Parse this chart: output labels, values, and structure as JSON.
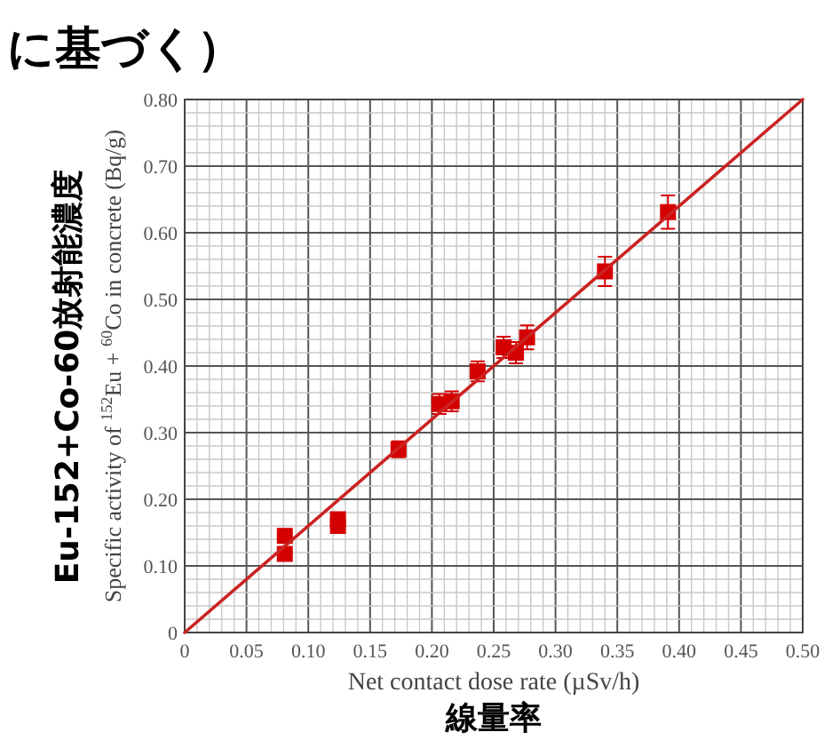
{
  "chart_data": {
    "type": "scatter",
    "title": "に基づく）",
    "xlabel": "Net contact dose rate (µSv/h)",
    "ylabel": "Specific activity of $^{152}$Eu + $^{60}$Co in concrete (Bq/g)",
    "annotations": [
      "Eu-152+Co-60放射能濃度",
      "線量率"
    ],
    "xlim": [
      0,
      0.5
    ],
    "ylim": [
      0,
      0.8
    ],
    "xticks": [
      0,
      {
        "value": 0.05,
        "label": "0.05"
      },
      {
        "value": 0.1,
        "label": "0.10"
      },
      {
        "value": 0.15,
        "label": "0.15"
      },
      {
        "value": 0.2,
        "label": "0.20"
      },
      {
        "value": 0.25,
        "label": "0.25"
      },
      {
        "value": 0.3,
        "label": "0.30"
      },
      {
        "value": 0.35,
        "label": "0.35"
      },
      {
        "value": 0.4,
        "label": "0.40"
      },
      {
        "value": 0.45,
        "label": "0.45"
      },
      {
        "value": 0.5,
        "label": "0.50"
      }
    ],
    "yticks": [
      0,
      {
        "value": 0.1,
        "label": "0.10"
      },
      {
        "value": 0.2,
        "label": "0.20"
      },
      {
        "value": 0.3,
        "label": "0.30"
      },
      {
        "value": 0.4,
        "label": "0.40"
      },
      {
        "value": 0.5,
        "label": "0.50"
      },
      {
        "value": 0.6,
        "label": "0.60"
      },
      {
        "value": 0.7,
        "label": "0.70"
      },
      {
        "value": 0.8,
        "label": "0.80"
      }
    ],
    "grid": true,
    "series": [
      {
        "type": "scatter",
        "marker": "square",
        "color": "#d40000",
        "x": [
          0.081,
          0.081,
          0.124,
          0.124,
          0.173,
          0.206,
          0.216,
          0.237,
          0.258,
          0.268,
          0.277,
          0.34,
          0.391
        ],
        "values": [
          0.145,
          0.118,
          0.17,
          0.16,
          0.275,
          0.343,
          0.347,
          0.392,
          0.428,
          0.42,
          0.443,
          0.542,
          0.631
        ],
        "errors": [
          0.01,
          0.008,
          0.01,
          0.01,
          0.012,
          0.015,
          0.015,
          0.015,
          0.016,
          0.016,
          0.018,
          0.022,
          0.025
        ]
      },
      {
        "type": "line",
        "marker": "none",
        "color": "#cc2222",
        "x": [
          0,
          0.5
        ],
        "values": [
          0,
          0.8
        ]
      }
    ]
  }
}
